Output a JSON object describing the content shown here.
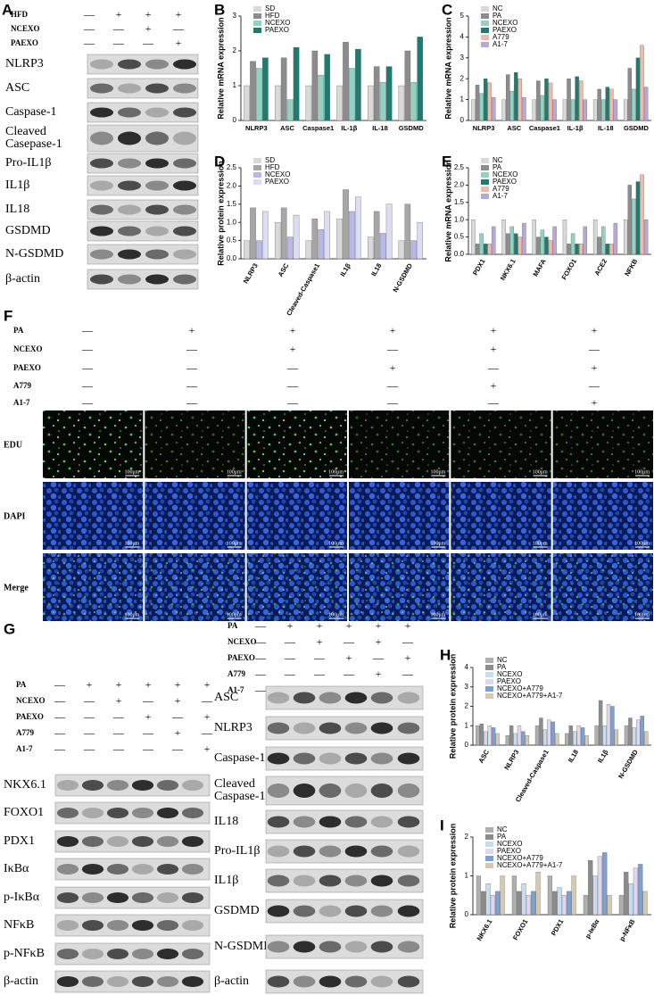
{
  "panel_labels": [
    "A",
    "B",
    "C",
    "D",
    "E",
    "F",
    "G",
    "H",
    "I"
  ],
  "panel_a": {
    "conditions": [
      {
        "name": "HFD",
        "signs": [
          "—",
          "+",
          "+",
          "+"
        ]
      },
      {
        "name": "NCEXO",
        "signs": [
          "—",
          "—",
          "+",
          "—"
        ]
      },
      {
        "name": "PAEXO",
        "signs": [
          "—",
          "—",
          "—",
          "+"
        ]
      }
    ],
    "bands": [
      [
        "NLRP3"
      ],
      [
        "ASC"
      ],
      [
        "Caspase-1"
      ],
      [
        "Cleaved",
        "Casepase-1"
      ],
      [
        "Pro-IL1β"
      ],
      [
        "IL1β"
      ],
      [
        "IL18"
      ],
      [
        "GSDMD"
      ],
      [
        "N-GSDMD"
      ],
      [
        "β-actin"
      ]
    ]
  },
  "panel_f": {
    "conditions": [
      {
        "name": "PA",
        "signs": [
          "—",
          "+",
          "+",
          "+",
          "+",
          "+"
        ]
      },
      {
        "name": "NCEXO",
        "signs": [
          "—",
          "—",
          "+",
          "—",
          "+",
          "—"
        ]
      },
      {
        "name": "PAEXO",
        "signs": [
          "—",
          "—",
          "—",
          "+",
          "—",
          "+"
        ]
      },
      {
        "name": "A779",
        "signs": [
          "—",
          "—",
          "—",
          "—",
          "+",
          "—"
        ]
      },
      {
        "name": "A1-7",
        "signs": [
          "—",
          "—",
          "—",
          "—",
          "—",
          "+"
        ]
      }
    ],
    "channels": [
      "EDU",
      "DAPI",
      "Merge"
    ],
    "scale_bar": "100μm"
  },
  "panel_g_left": {
    "conditions": [
      {
        "name": "PA",
        "signs": [
          "—",
          "+",
          "+",
          "+",
          "+",
          "+"
        ]
      },
      {
        "name": "NCEXO",
        "signs": [
          "—",
          "—",
          "+",
          "—",
          "+",
          "—"
        ]
      },
      {
        "name": "PAEXO",
        "signs": [
          "—",
          "—",
          "—",
          "+",
          "—",
          "+"
        ]
      },
      {
        "name": "A779",
        "signs": [
          "—",
          "—",
          "—",
          "—",
          "+",
          "—"
        ]
      },
      {
        "name": "A1-7",
        "signs": [
          "—",
          "—",
          "—",
          "—",
          "—",
          "+"
        ]
      }
    ],
    "bands": [
      [
        "NKX6.1"
      ],
      [
        "FOXO1"
      ],
      [
        "PDX1"
      ],
      [
        "IκBα"
      ],
      [
        "p-IκBα"
      ],
      [
        "NFκB"
      ],
      [
        "p-NFκB"
      ],
      [
        "β-actin"
      ]
    ]
  },
  "panel_g_right": {
    "conditions": [
      {
        "name": "PA",
        "signs": [
          "—",
          "+",
          "+",
          "+",
          "+",
          "+"
        ]
      },
      {
        "name": "NCEXO",
        "signs": [
          "—",
          "—",
          "+",
          "—",
          "+",
          "—"
        ]
      },
      {
        "name": "PAEXO",
        "signs": [
          "—",
          "—",
          "—",
          "+",
          "—",
          "+"
        ]
      },
      {
        "name": "A779",
        "signs": [
          "—",
          "—",
          "—",
          "—",
          "+",
          "—"
        ]
      },
      {
        "name": "A1-7",
        "signs": [
          "—",
          "—",
          "—",
          "—",
          "—",
          "+"
        ]
      }
    ],
    "bands": [
      [
        "ASC"
      ],
      [
        "NLRP3"
      ],
      [
        "Caspase-1"
      ],
      [
        "Cleaved",
        "Caspase-1"
      ],
      [
        "IL18"
      ],
      [
        "Pro-IL1β"
      ],
      [
        "IL1β"
      ],
      [
        "GSDMD"
      ],
      [
        "N-GSDMD"
      ],
      [
        "β-actin"
      ]
    ]
  },
  "chart_data": [
    {
      "type": "bar",
      "ylabel": "Relative mRNA expression",
      "categories": [
        "NLRP3",
        "ASC",
        "Caspase1",
        "IL-1β",
        "IL-18",
        "GSDMD"
      ],
      "series": [
        {
          "name": "SD",
          "color": "#d9d9d9",
          "values": [
            1,
            1,
            1,
            1,
            1,
            1
          ]
        },
        {
          "name": "HFD",
          "color": "#8c8c8c",
          "values": [
            1.7,
            1.8,
            2.0,
            2.25,
            1.55,
            2.0
          ]
        },
        {
          "name": "NCEXO",
          "color": "#8fd3c3",
          "values": [
            1.5,
            0.6,
            1.3,
            1.5,
            1.1,
            1.1
          ]
        },
        {
          "name": "PAEXO",
          "color": "#1e7b70",
          "values": [
            1.8,
            2.1,
            1.9,
            2.05,
            1.55,
            2.4
          ]
        }
      ],
      "ylim": [
        0,
        3
      ],
      "yticks": [
        0,
        1,
        2,
        3
      ]
    },
    {
      "type": "bar",
      "ylabel": "Relative mRNA expression",
      "categories": [
        "NLRP3",
        "ASC",
        "Caspase1",
        "IL-1β",
        "IL-18",
        "GSDMD"
      ],
      "series": [
        {
          "name": "NC",
          "color": "#d9d9d9",
          "values": [
            1,
            1,
            1,
            1,
            1,
            1
          ]
        },
        {
          "name": "PA",
          "color": "#8c8c8c",
          "values": [
            1.7,
            2.2,
            1.9,
            2.0,
            1.5,
            2.5
          ]
        },
        {
          "name": "NCEXO",
          "color": "#8fd3c3",
          "values": [
            1.3,
            1.4,
            1.2,
            1.0,
            1.0,
            1.5
          ]
        },
        {
          "name": "PAEXO",
          "color": "#1e7b70",
          "values": [
            2.0,
            2.3,
            2.0,
            2.1,
            1.6,
            3.0
          ]
        },
        {
          "name": "A779",
          "color": "#f2b8a8",
          "values": [
            1.8,
            2.0,
            1.8,
            1.9,
            1.5,
            3.6
          ]
        },
        {
          "name": "A1-7",
          "color": "#b8a8d8",
          "values": [
            1.1,
            1.1,
            1.0,
            1.0,
            1.0,
            1.6
          ]
        }
      ],
      "ylim": [
        0,
        5
      ],
      "yticks": [
        0,
        1,
        2,
        3,
        4,
        5
      ]
    },
    {
      "type": "bar",
      "ylabel": "Relative protein expression",
      "categories": [
        "NLRP3",
        "ASC",
        "Cleaved-Caspase1",
        "IL1β",
        "IL18",
        "N-GSDMD"
      ],
      "series": [
        {
          "name": "SD",
          "color": "#d9d9d9",
          "values": [
            0.5,
            1.0,
            0.5,
            1.1,
            0.6,
            0.5
          ]
        },
        {
          "name": "HFD",
          "color": "#a6a6a6",
          "values": [
            1.4,
            1.4,
            1.1,
            1.9,
            1.3,
            1.5
          ]
        },
        {
          "name": "NCEXO",
          "color": "#b8b8e8",
          "values": [
            0.5,
            0.6,
            0.8,
            1.3,
            0.7,
            0.5
          ]
        },
        {
          "name": "PAEXO",
          "color": "#dcdcf2",
          "values": [
            1.3,
            1.2,
            1.3,
            1.7,
            1.5,
            1.0
          ]
        }
      ],
      "ylim": [
        0,
        2.5
      ],
      "yticks": [
        {
          "value": 0,
          "label": "0.0"
        },
        0.5,
        {
          "value": 1,
          "label": "1.0"
        },
        1.5,
        {
          "value": 2,
          "label": "2.0"
        },
        2.5
      ]
    },
    {
      "type": "bar",
      "ylabel": "Relative mRNA expression",
      "categories": [
        "PDX1",
        "NKX6.1",
        "MAFA",
        "FOXO1",
        "ACE2",
        "NFKB"
      ],
      "series": [
        {
          "name": "NC",
          "color": "#d9d9d9",
          "values": [
            1,
            1,
            1,
            1,
            1,
            1
          ]
        },
        {
          "name": "PA",
          "color": "#8c8c8c",
          "values": [
            0.3,
            0.6,
            0.5,
            0.3,
            0.5,
            2.0
          ]
        },
        {
          "name": "NCEXO",
          "color": "#8fd3c3",
          "values": [
            0.6,
            0.8,
            0.7,
            0.6,
            0.8,
            1.6
          ]
        },
        {
          "name": "PAEXO",
          "color": "#1e7b70",
          "values": [
            0.3,
            0.6,
            0.5,
            0.3,
            0.3,
            2.1
          ]
        },
        {
          "name": "A779",
          "color": "#f2b8a8",
          "values": [
            0.3,
            0.5,
            0.4,
            0.3,
            0.3,
            2.3
          ]
        },
        {
          "name": "A1-7",
          "color": "#b8a8d8",
          "values": [
            0.8,
            0.9,
            0.8,
            0.8,
            0.9,
            1.0
          ]
        }
      ],
      "ylim": [
        0,
        2.5
      ],
      "yticks": [
        {
          "value": 0,
          "label": "0.0"
        },
        0.5,
        {
          "value": 1,
          "label": "1.0"
        },
        1.5,
        {
          "value": 2,
          "label": "2.0"
        },
        2.5
      ]
    },
    {
      "type": "bar",
      "ylabel": "Relative protein expression",
      "categories": [
        "ASC",
        "NLRP3",
        "Cleaved-Caspase1",
        "IL18",
        "IL1β",
        "N-GSDMD"
      ],
      "series": [
        {
          "name": "NC",
          "color": "#b0b0b0",
          "values": [
            1,
            0.5,
            1,
            0.6,
            1,
            1
          ]
        },
        {
          "name": "PA",
          "color": "#8c8c8c",
          "values": [
            1.1,
            1.0,
            1.4,
            1.0,
            2.3,
            1.4
          ]
        },
        {
          "name": "NCEXO",
          "color": "#c8dcf0",
          "values": [
            0.7,
            0.6,
            0.8,
            0.7,
            1.0,
            0.9
          ]
        },
        {
          "name": "PAEXO",
          "color": "#e0d8f0",
          "values": [
            1.0,
            1.0,
            1.3,
            1.0,
            2.1,
            1.3
          ]
        },
        {
          "name": "NCEXO+A779",
          "color": "#7da0d0",
          "values": [
            0.9,
            0.7,
            1.2,
            0.9,
            2.0,
            1.5
          ]
        },
        {
          "name": "NCEXO+A779+A1-7",
          "color": "#d8c8b0",
          "values": [
            0.6,
            0.5,
            0.6,
            0.5,
            0.8,
            0.7
          ]
        }
      ],
      "ylim": [
        0,
        4
      ],
      "yticks": [
        0,
        1,
        2,
        3,
        4
      ]
    },
    {
      "type": "bar",
      "ylabel": "Relative protein expression",
      "categories": [
        "NKX6.1",
        "FOXO1",
        "PDX1",
        "p-IκBα",
        "p-NFκB"
      ],
      "series": [
        {
          "name": "NC",
          "color": "#b0b0b0",
          "values": [
            1,
            1,
            1,
            0.5,
            0.5
          ]
        },
        {
          "name": "PA",
          "color": "#8c8c8c",
          "values": [
            0.6,
            0.6,
            0.6,
            1.4,
            1.1
          ]
        },
        {
          "name": "NCEXO",
          "color": "#c8dcf0",
          "values": [
            0.8,
            0.8,
            0.7,
            1.0,
            0.8
          ]
        },
        {
          "name": "PAEXO",
          "color": "#e0d8f0",
          "values": [
            0.5,
            0.5,
            0.5,
            1.5,
            1.2
          ]
        },
        {
          "name": "NCEXO+A779",
          "color": "#7da0d0",
          "values": [
            0.6,
            0.6,
            0.6,
            1.6,
            1.3
          ]
        },
        {
          "name": "NCEXO+A779+A1-7",
          "color": "#d8c8b0",
          "values": [
            1.0,
            1.1,
            1.0,
            0.5,
            0.6
          ]
        }
      ],
      "ylim": [
        0,
        2
      ],
      "yticks": [
        0,
        1,
        2
      ]
    }
  ]
}
